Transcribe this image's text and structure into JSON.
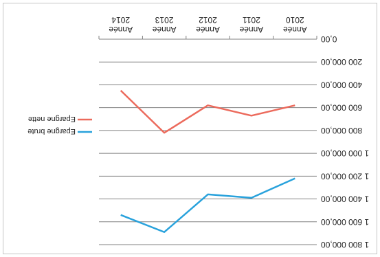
{
  "chart_data": {
    "type": "line",
    "categories": [
      "Année 2010",
      "Année 2011",
      "Année 2012",
      "Année 2013",
      "Année 2014"
    ],
    "series": [
      {
        "name": "Epargne brute",
        "values": [
          1220000,
          1390000,
          1360000,
          1690000,
          1540000
        ],
        "color": "#29a2dc"
      },
      {
        "name": "Epargne nette",
        "values": [
          580000,
          670000,
          580000,
          820000,
          450000
        ],
        "color": "#ec6a5c"
      }
    ],
    "ylim": [
      0,
      1800000
    ],
    "yticks": [
      "0,00",
      "200 000,00",
      "400 000,00",
      "600 000,00",
      "800 000,00",
      "1 000 000,00",
      "1 200 000,00",
      "1 400 000,00",
      "1 600 000,00",
      "1 800 000,00"
    ],
    "grid": true,
    "legend": "right",
    "rotation": "180deg"
  }
}
